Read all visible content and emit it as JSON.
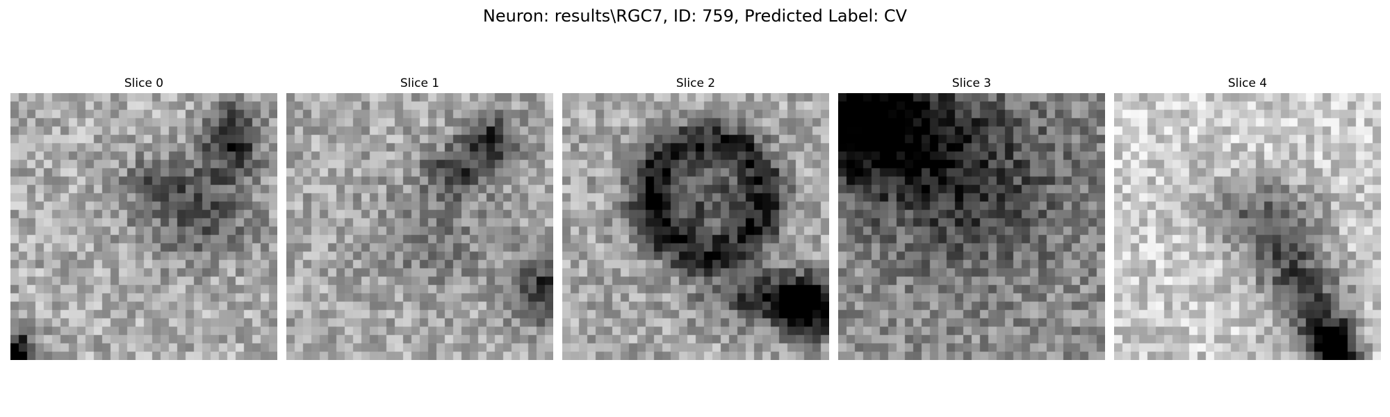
{
  "figure": {
    "title": "Neuron: results\\RGC7, ID: 759, Predicted Label: CV",
    "colormap": "grayscale",
    "slices": [
      {
        "label": "Slice 0"
      },
      {
        "label": "Slice 1"
      },
      {
        "label": "Slice 2"
      },
      {
        "label": "Slice 3"
      },
      {
        "label": "Slice 4"
      }
    ]
  }
}
